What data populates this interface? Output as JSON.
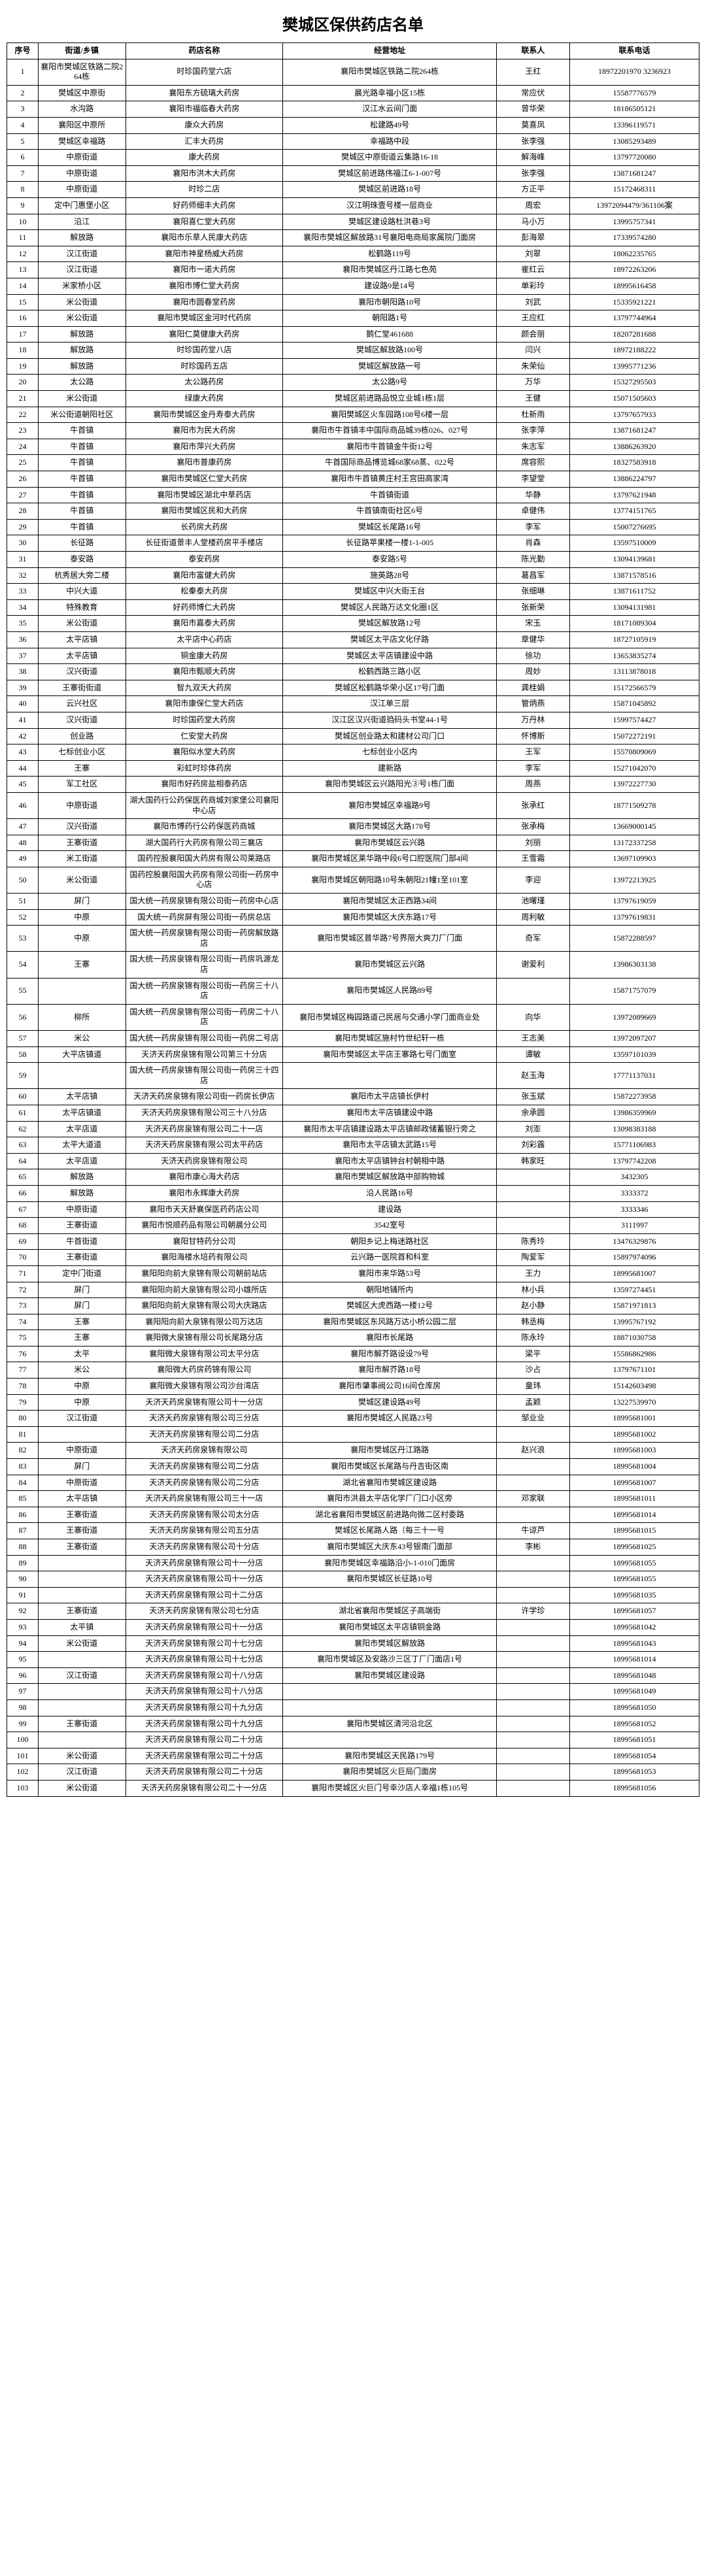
{
  "title": "樊城区保供药店名单",
  "columns": [
    "序号",
    "街道/乡镇",
    "药店名称",
    "经营地址",
    "联系人",
    "联系电话"
  ],
  "rows": [
    [
      "1",
      "襄阳市樊城区铁路二院264栋",
      "时珍国药堂六店",
      "襄阳市樊城区铁路二院264栋",
      "王红",
      "18972201970 3236923"
    ],
    [
      "2",
      "樊城区中原街",
      "襄阳东方硫璃大药房",
      "晨光路幸福小区15栋",
      "常应伏",
      "15587776579"
    ],
    [
      "3",
      "水沟路",
      "襄阳市福临春大药房",
      "汉江水云间门面",
      "曾华荣",
      "18186505121"
    ],
    [
      "4",
      "襄阳区中原所",
      "康众大药房",
      "松建路49号",
      "莫喜凤",
      "13396119571"
    ],
    [
      "5",
      "樊城区幸福路",
      "汇丰大药房",
      "幸福路中段",
      "张李强",
      "13085293489"
    ],
    [
      "6",
      "中原街道",
      "康大药房",
      "樊城区中原街道云集路16-18",
      "解海峰",
      "13797720080"
    ],
    [
      "7",
      "中原街道",
      "襄阳市洪木大药房",
      "樊城区前进路伟福江6-1-007号",
      "张李强",
      "13871681247"
    ],
    [
      "8",
      "中原街道",
      "时珍二店",
      "樊城区前进路18号",
      "方正平",
      "15172468311"
    ],
    [
      "9",
      "定中门惠堡小区",
      "好药师细丰大药房",
      "汉江明珠壹号楼一层商业",
      "周宏",
      "13972094479/361106案"
    ],
    [
      "10",
      "沿江",
      "襄阳喜仁堂大药房",
      "樊城区建设路杜洪巷3号",
      "马小万",
      "13995757341"
    ],
    [
      "11",
      "解放路",
      "襄阳市乐草人民康大药店",
      "襄阳市樊城区解放路31号襄阳电商局家属院门面房",
      "彭海翠",
      "17339574280"
    ],
    [
      "12",
      "汉江街道",
      "襄阳市神星杨威大药房",
      "松鹤路119号",
      "刘翠",
      "18062235765"
    ],
    [
      "13",
      "汉江街道",
      "襄阳市一诺大药房",
      "襄阳市樊城区丹江路七色苑",
      "崔红云",
      "18972263206"
    ],
    [
      "14",
      "米家桥小区",
      "襄阳市博仁堂大药房",
      "建设路9是14号",
      "单彩玲",
      "18995616458"
    ],
    [
      "15",
      "米公街道",
      "襄阳市圆春堂药房",
      "襄阳市朝阳路10号",
      "刘武",
      "15335921221"
    ],
    [
      "16",
      "米公街道",
      "襄阳市樊城区金河时代药房",
      "朝阳路1号",
      "王应红",
      "13797744964"
    ],
    [
      "17",
      "解放路",
      "襄阳仁莫健康大药房",
      "鹅仁堂461688",
      "颜会丽",
      "18207281688"
    ],
    [
      "18",
      "解放路",
      "时珍国药堂八店",
      "樊城区解放路100号",
      "闫兴",
      "18972188222"
    ],
    [
      "19",
      "解放路",
      "时珍国药五店",
      "樊城区解放路一号",
      "朱荣仙",
      "13995771236"
    ],
    [
      "20",
      "太公路",
      "太公路药房",
      "太公路9号",
      "万华",
      "15327295503"
    ],
    [
      "21",
      "米公街道",
      "绿康大药房",
      "樊城区前进路品悦立业城1栋1层",
      "王健",
      "15071505603"
    ],
    [
      "22",
      "米公街道朝阳社区",
      "襄阳市樊城区金丹寿泰大药房",
      "襄阳樊城区火车园路108号6楼一层",
      "杜新雨",
      "13797657933"
    ],
    [
      "23",
      "牛首镇",
      "襄阳市为民大药房",
      "襄阳市牛首镇丰中国际商品城39栋026、027号",
      "张李萍",
      "13871681247"
    ],
    [
      "24",
      "牛首镇",
      "襄阳市萍兴大药房",
      "襄阳市牛首镇金牛街12号",
      "朱志军",
      "13886263920"
    ],
    [
      "25",
      "牛首镇",
      "襄阳市普康药房",
      "牛首国际商品博览城68家68蒸、022号",
      "席容熙",
      "18327583918"
    ],
    [
      "26",
      "牛首镇",
      "襄阳市樊城区仁堂大药房",
      "襄阳市牛首镇黄庄村王宫田高家湾",
      "李望堂",
      "13886224797"
    ],
    [
      "27",
      "牛首镇",
      "襄阳市樊城区湖北中草药店",
      "牛首镇街道",
      "华静",
      "13797621948"
    ],
    [
      "28",
      "牛首镇",
      "襄阳市樊城区民和大药房",
      "牛首镇南街社区6号",
      "卓健伟",
      "13774151765"
    ],
    [
      "29",
      "牛首镇",
      "长药房大药房",
      "樊城区长尾路16号",
      "李军",
      "15007276695"
    ],
    [
      "30",
      "长征路",
      "长征街道景丰人堂楼药房平手楼店",
      "长征路苹果楼一楼1-1-005",
      "肖森",
      "13597510009"
    ],
    [
      "31",
      "泰安路",
      "泰安药房",
      "泰安路5号",
      "陈光勤",
      "13094139681"
    ],
    [
      "32",
      "杭秀居大旁二楼",
      "襄阳市富健大药房",
      "施英路28号",
      "葛昌军",
      "13871578516"
    ],
    [
      "33",
      "中兴大道",
      "松秦泰大药房",
      "樊城区中兴大街王台",
      "张细琳",
      "13871611752"
    ],
    [
      "34",
      "特殊教育",
      "好药师博仁大药房",
      "樊城区人民路万达文化圈1区",
      "张新荣",
      "13094131981"
    ],
    [
      "35",
      "米公街道",
      "襄阳市嘉泰大药房",
      "樊城区解放路12号",
      "宋玉",
      "18171089304"
    ],
    [
      "36",
      "太平店镇",
      "太平店中心药店",
      "樊城区太平店文化仔路",
      "章健华",
      "18727105919"
    ],
    [
      "37",
      "太平店镇",
      "铜金康大药房",
      "樊城区太平店镇建设中路",
      "徐功",
      "13653835274"
    ],
    [
      "38",
      "汉兴街道",
      "襄阳市甄顺大药房",
      "松鹤西路三路小区",
      "周妙",
      "13113878018"
    ],
    [
      "39",
      "王寨街街道",
      "智九双天大药房",
      "樊城区松鹤路华荣小区17号门面",
      "龚桂娟",
      "15172566579"
    ],
    [
      "40",
      "云兴社区",
      "襄阳市康保仁堂大药店",
      "汉江单三层",
      "管炳燕",
      "15871045892"
    ],
    [
      "41",
      "汉兴街道",
      "时珍国药堂大药房",
      "汉江区汉兴街道驺码头书堂44-1号",
      "万丹林",
      "15997574427"
    ],
    [
      "42",
      "创业路",
      "仁安堂大药房",
      "樊城区创业路太和建材公司门口",
      "怀博斯",
      "15072272191"
    ],
    [
      "43",
      "七标创业小区",
      "襄阳似水堂大药房",
      "七标创业小区内",
      "王军",
      "15570809069"
    ],
    [
      "44",
      "王寨",
      "彩虹时珍体药房",
      "建新路",
      "李军",
      "15271042070"
    ],
    [
      "45",
      "军工社区",
      "襄阳市好药房盐相泰药店",
      "襄阳市樊城区云兴路阳光③号1栋门面",
      "周燕",
      "13972227730"
    ],
    [
      "46",
      "中原街道",
      "湖大国药行公药保医药商城刘家堡公司襄阳中心店",
      "襄阳市樊城区幸福路9号",
      "张承红",
      "18771509278"
    ],
    [
      "47",
      "汉兴街道",
      "襄阳市博药行公药保医药商城",
      "襄阳市樊城区大路178号",
      "张承梅",
      "13669000145"
    ],
    [
      "48",
      "王寨街道",
      "湖大国药行大药房有限公司三襄店",
      "襄阳市樊城区云兴路",
      "刘丽",
      "13172337258"
    ],
    [
      "49",
      "米工街道",
      "国药控股襄阳国大药房有限公司莱路店",
      "襄阳市樊城区莱华路中段6号口腔医院门部4间",
      "王雪霜",
      "13697109903"
    ],
    [
      "50",
      "米公街道",
      "国药控股襄阳国大药房有限公司街一药房中心店",
      "襄阳市樊城区朝阳路10号朱朝阳21幢1至101室",
      "李迎",
      "13972213925"
    ],
    [
      "51",
      "屏门",
      "国大统一药房泉锦有限公司街一药房中心店",
      "襄阳市樊城区太正西路34间",
      "池曙瑾",
      "13797619059"
    ],
    [
      "52",
      "中原",
      "国大统一药房屏有限公司街一药房总店",
      "襄阳市樊城区大庆东路17号",
      "周利敏",
      "13797619831"
    ],
    [
      "53",
      "中原",
      "国大统一药房泉锦有限公司街一药房解放路店",
      "襄阳市樊城区普华路7号界限大爽刀厂门面",
      "奇军",
      "15872288597"
    ],
    [
      "54",
      "王寨",
      "国大统一药房泉锦有限公司街一药房巩源龙店",
      "襄阳市樊城区云兴路",
      "谢爱利",
      "13986303138"
    ],
    [
      "55",
      "",
      "国大统一药房泉锦有限公司街一药房三十八店",
      "襄阳市樊城区人民路89号",
      "",
      "15871757079"
    ],
    [
      "56",
      "柳所",
      "国大统一药房泉锦有限公司街一药房二十八店",
      "襄阳市樊城区梅园路道己民居与交通小学门面商业处",
      "向华",
      "13972089669"
    ],
    [
      "57",
      "米公",
      "国大统一药房泉锦有限公司街一药房二号店",
      "襄阳市樊城区施村竹世纪轩一栋",
      "王志美",
      "13972097207"
    ],
    [
      "58",
      "大平店镇道",
      "天济天药房泉锦有限公司第三十分店",
      "襄阳市樊城区太平店王寨路七号门面室",
      "谭敏",
      "13597101039"
    ],
    [
      "59",
      "",
      "国大统一药房泉锦有限公司街一药房三十四店",
      "",
      "赵玉海",
      "17771137031"
    ],
    [
      "60",
      "太平店镇",
      "天济天药房泉锦有限公司街一药房长伊店",
      "襄阳市太平店镇长伊村",
      "张玉斌",
      "15872273958"
    ],
    [
      "61",
      "太平店镇道",
      "天济天药房泉锦有限公司三十八分店",
      "襄阳市太平店镇建设中路",
      "余承圆",
      "13986359969"
    ],
    [
      "62",
      "太平店道",
      "天济天药房泉锦有限公司二十一店",
      "襄阳市太平店镇建设路太平店镇邮政储蓄银行旁之",
      "刘澎",
      "13098383188"
    ],
    [
      "63",
      "太平大道道",
      "天济天药房泉锦有限公司太平药店",
      "襄阳市太平店镇太武路15号",
      "刘彩露",
      "15771106983"
    ],
    [
      "64",
      "太平店道",
      "天济天药房泉锦有限公司",
      "襄阳市太平店镇钟台村朝相中路",
      "韩家旺",
      "13797742208"
    ],
    [
      "65",
      "解放路",
      "襄阳市康心海大药店",
      "襄阳市樊城区解放路中部购物城",
      "",
      "3432305"
    ],
    [
      "66",
      "解放路",
      "襄阳市永辉康大药房",
      "沿人民路16号",
      "",
      "3333372"
    ],
    [
      "67",
      "中原街道",
      "襄阳市天天舒襄保医药药店公司",
      "建设路",
      "",
      "3333346"
    ],
    [
      "68",
      "王寨街道",
      "襄阳市悦顺药品有限公司朝晨分公司",
      "3542室号",
      "",
      "3111997"
    ],
    [
      "69",
      "牛首街道",
      "襄阳甘特药分公司",
      "朝阳乡记上梅迷路社区",
      "陈秀玲",
      "13476329876"
    ],
    [
      "70",
      "王寨街道",
      "襄阳海楼水培药有限公司",
      "云兴路一医院首和科室",
      "陶爱军",
      "15897974096"
    ],
    [
      "71",
      "定中门街道",
      "襄阳阳向前大泉锦有限公司朝前站店",
      "襄阳市来华路53号",
      "王力",
      "18995681007"
    ],
    [
      "72",
      "屏门",
      "襄阳阳向前大泉锦有限公司小雄所店",
      "朝阳地铺所内",
      "林小兵",
      "13597274451"
    ],
    [
      "73",
      "屏门",
      "襄阳阳向前大泉锦有限公司大庆路店",
      "樊城区大虎西路一楼12号",
      "赵小静",
      "15871971813"
    ],
    [
      "74",
      "王寨",
      "襄阳阳向前大泉锦有限公司万达店",
      "襄阳市樊城区东风路万达小桥公园二层",
      "韩丞梅",
      "13995767192"
    ],
    [
      "75",
      "王寨",
      "襄阳微大泉锦有限公司长尾路分店",
      "襄阳市长尾路",
      "陈永玲",
      "18871030758"
    ],
    [
      "76",
      "太平",
      "襄阳微大泉锦有限公司太平分店",
      "襄阳市解芥路设设79号",
      "梁平",
      "15586862986"
    ],
    [
      "77",
      "米公",
      "襄阳微大药房药锦有限公司",
      "襄阳市解芥路18号",
      "沙占",
      "13797671101"
    ],
    [
      "78",
      "中原",
      "襄阳微大泉锦有限公司沙台湾店",
      "襄阳市肇事阀公司16间仓库房",
      "童玮",
      "15142603498"
    ],
    [
      "79",
      "中原",
      "天济天药房泉锦有限公司十一分店",
      "樊城区建设路49号",
      "孟颖",
      "13227539970"
    ],
    [
      "80",
      "汉江街道",
      "天济天药房泉锦有限公司三分店",
      "襄阳市樊城区人民路23号",
      "邹业业",
      "18995681001"
    ],
    [
      "81",
      "",
      "天济天药房泉锦有限公司二分店",
      "",
      "",
      "18995681002"
    ],
    [
      "82",
      "中原街道",
      "天济天药房泉锦有限公司",
      "襄阳市樊城区丹江路路",
      "赵兴浪",
      "18995681003"
    ],
    [
      "83",
      "屏门",
      "天济天药房泉锦有限公司二分店",
      "襄阳市樊城区长尾路与丹吉街区南",
      "",
      "18995681004"
    ],
    [
      "84",
      "中原街道",
      "天济天药房泉锦有限公司二分店",
      "湖北省襄阳市樊城区建设路",
      "",
      "18995681007"
    ],
    [
      "85",
      "太平店镇",
      "天济天药房泉锦有限公司三十一店",
      "襄阳市洪县太平店化学厂门口小区旁",
      "邓家联",
      "18995681011"
    ],
    [
      "86",
      "王寨街道",
      "天济天药房泉锦有限公司太分店",
      "湖北省襄阳市樊城区前进路向微二区村委路",
      "",
      "18995681014"
    ],
    [
      "87",
      "王寨街道",
      "天济天药房泉锦有限公司五分店",
      "樊城区长尾路人路（每三十一号",
      "牛谅芦",
      "18995681015"
    ],
    [
      "88",
      "王寨街道",
      "天济天药房泉锦有限公司十分店",
      "襄阳市樊城区大庆东43号银南门面部",
      "李彬",
      "18995681025"
    ],
    [
      "89",
      "",
      "天济天药房泉锦有限公司十一分店",
      "襄阳市樊城区幸福路沿小-1-010门面房",
      "",
      "18995681055"
    ],
    [
      "90",
      "",
      "天济天药房泉锦有限公司十一分店",
      "襄阳市樊城区长征路10号",
      "",
      "18995681055"
    ],
    [
      "91",
      "",
      "天济天药房泉锦有限公司十二分店",
      "",
      "",
      "18995681035"
    ],
    [
      "92",
      "王寨街道",
      "天济天药房泉锦有限公司七分店",
      "湖北省襄阳市樊城区子高端街",
      "许学珍",
      "18995681057"
    ],
    [
      "93",
      "太平镇",
      "天济天药房泉锦有限公司十一分店",
      "襄阳市樊城区太平店镇铜金路",
      "",
      "18995681042"
    ],
    [
      "94",
      "米公街道",
      "天济天药房泉锦有限公司十七分店",
      "襄阳市樊城区解放路",
      "",
      "18995681043"
    ],
    [
      "95",
      "",
      "天济天药房泉锦有限公司十七分店",
      "襄阳市樊城区及安路沙三区丁厂门面店1号",
      "",
      "18995681014"
    ],
    [
      "96",
      "汉江街道",
      "天济天药房泉锦有限公司十八分店",
      "襄阳市樊城区建设路",
      "",
      "18995681048"
    ],
    [
      "97",
      "",
      "天济天药房泉锦有限公司十八分店",
      "",
      "",
      "18995681049"
    ],
    [
      "98",
      "",
      "天济天药房泉锦有限公司十九分店",
      "",
      "",
      "18995681050"
    ],
    [
      "99",
      "王寨街道",
      "天济天药房泉锦有限公司十九分店",
      "襄阳市樊城区清河沿北区",
      "",
      "18995681052"
    ],
    [
      "100",
      "",
      "天济天药房泉锦有限公司二十分店",
      "",
      "",
      "18995681051"
    ],
    [
      "101",
      "米公街道",
      "天济天药房泉锦有限公司二十分店",
      "襄阳市樊城区天民路179号",
      "",
      "18995681054"
    ],
    [
      "102",
      "汉江街道",
      "天济天药房泉锦有限公司二十分店",
      "襄阳市樊城区火巨局门面房",
      "",
      "18995681053"
    ],
    [
      "103",
      "米公街道",
      "天济天药房泉锦有限公司二十一分店",
      "襄阳市樊城区火巨门号幸沙店人幸福1栋105号",
      "",
      "18995681056"
    ]
  ]
}
